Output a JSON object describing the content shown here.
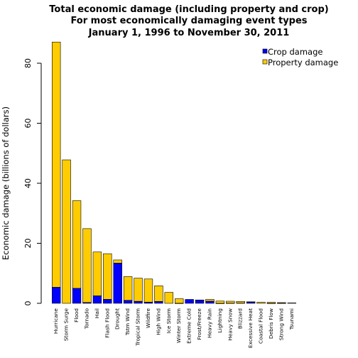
{
  "chart_data": {
    "type": "bar",
    "stacked": true,
    "title": [
      "Total economic damage (including property and crop)",
      "For most economically damaging event types",
      "January 1, 1996 to November 30, 2011"
    ],
    "xlabel": "",
    "ylabel": "Economic damage (billions of dollars)",
    "ylim": [
      0,
      88
    ],
    "yticks": [
      0,
      20,
      40,
      60,
      80
    ],
    "grid": false,
    "legend_position": "top-right",
    "categories": [
      "Hurricane",
      "Storm Surge",
      "Flood",
      "Tornado",
      "Hail",
      "Flash Flood",
      "Drought",
      "Tstm Wind",
      "Tropical Storm",
      "Wildfire",
      "High Wind",
      "Ice Storm",
      "Winter Storm",
      "Extreme Cold",
      "Frost/Freeze",
      "Heavy Rain",
      "Lightning",
      "Heavy Snow",
      "Blizzard",
      "Excessive Heat",
      "Coastal Flood",
      "Debris Flow",
      "Strong Wind",
      "Tsunami"
    ],
    "series": [
      {
        "name": "Crop damage",
        "color": "#0000ff",
        "values": [
          5.35,
          0.0,
          5.0,
          0.28,
          2.5,
          1.33,
          13.4,
          1.0,
          0.68,
          0.4,
          0.63,
          0.0,
          0.03,
          1.3,
          1.1,
          0.73,
          0.01,
          0.07,
          0.11,
          0.49,
          0.0,
          0.02,
          0.06,
          0.0
        ]
      },
      {
        "name": "Property damage",
        "color": "#ffcc00",
        "values": [
          81.7,
          47.8,
          29.2,
          24.6,
          14.6,
          15.2,
          1.05,
          7.9,
          7.7,
          7.7,
          5.2,
          3.65,
          1.5,
          0.0,
          0.01,
          0.58,
          0.74,
          0.63,
          0.53,
          0.01,
          0.35,
          0.3,
          0.18,
          0.14
        ]
      }
    ]
  }
}
